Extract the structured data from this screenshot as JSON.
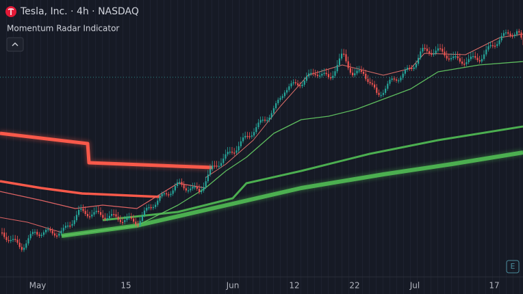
{
  "header": {
    "symbol": "Tesla, Inc. · 4h · NASDAQ",
    "indicator": "Momentum Radar Indicator"
  },
  "x_axis": {
    "labels": [
      "May",
      "15",
      "Jun",
      "12",
      "22",
      "Jul",
      "17"
    ]
  }
}
